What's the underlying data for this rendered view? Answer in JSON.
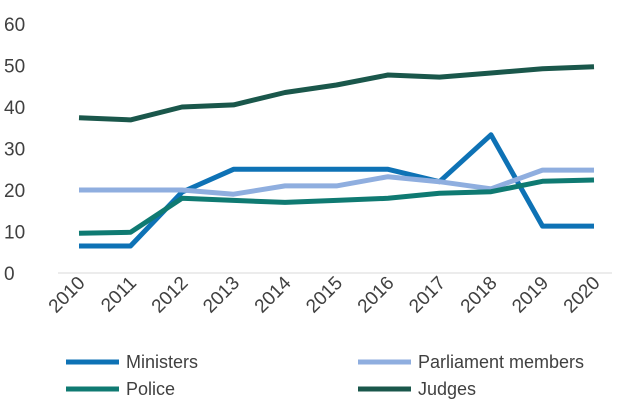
{
  "chart_data": {
    "type": "line",
    "title": "",
    "xlabel": "",
    "ylabel": "",
    "x": [
      "2010",
      "2011",
      "2012",
      "2013",
      "2014",
      "2015",
      "2016",
      "2017",
      "2018",
      "2019",
      "2020"
    ],
    "ylim": [
      0,
      60
    ],
    "yticks": [
      "0",
      "10",
      "20",
      "30",
      "40",
      "50",
      "60"
    ],
    "grid": false,
    "legend_position": "bottom",
    "series": [
      {
        "name": "Ministers",
        "color": "#0E72B5",
        "values": [
          6.5,
          6.5,
          19.5,
          25,
          25,
          25,
          25,
          22,
          33.3,
          11.3,
          11.3
        ]
      },
      {
        "name": "Parliament members",
        "color": "#8FAEDF",
        "values": [
          20,
          20,
          20,
          19,
          21,
          21,
          23.2,
          22,
          20.3,
          24.8,
          24.8
        ]
      },
      {
        "name": "Police",
        "color": "#0F7A72",
        "values": [
          9.6,
          9.8,
          18,
          17.5,
          17,
          17.5,
          18,
          19.2,
          19.6,
          22.1,
          22.4
        ]
      },
      {
        "name": "Judges",
        "color": "#1A574B",
        "values": [
          37.4,
          36.9,
          40,
          40.5,
          43.5,
          45.3,
          47.7,
          47.2,
          48.2,
          49.2,
          49.7
        ]
      }
    ]
  }
}
